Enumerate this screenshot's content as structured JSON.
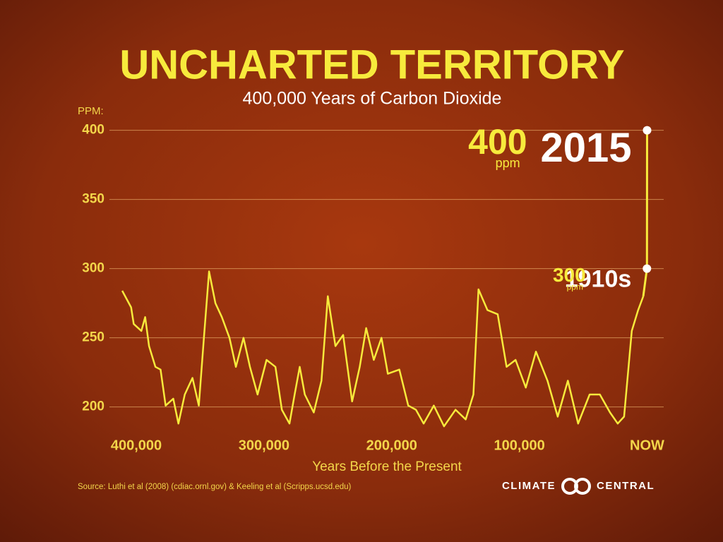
{
  "chart_data": {
    "type": "line",
    "title": "UNCHARTED TERRITORY",
    "subtitle": "400,000 Years of Carbon Dioxide",
    "y_label": "PPM:",
    "x_label": "Years Before the Present",
    "source": "Source:  Luthi et al (2008) (cdiac.ornl.gov) & Keeling et al (Scripps.ucsd.edu)",
    "logo": [
      "CLIMATE",
      "CENTRAL"
    ],
    "color": "#f7ea3c",
    "grid": true,
    "xlim": [
      421000,
      -13000
    ],
    "ylim": [
      183,
      410
    ],
    "xticks": [
      {
        "value": 400000,
        "label": "400,000"
      },
      {
        "value": 300000,
        "label": "300,000"
      },
      {
        "value": 200000,
        "label": "200,000"
      },
      {
        "value": 100000,
        "label": "100,000"
      },
      {
        "value": 0,
        "label": "NOW"
      }
    ],
    "yticks": [
      200,
      250,
      300,
      350,
      400
    ],
    "x": [
      411000,
      404000,
      402000,
      396000,
      393000,
      390000,
      385000,
      381000,
      377000,
      371000,
      367000,
      362000,
      356000,
      351000,
      347000,
      343000,
      338000,
      333000,
      327000,
      322000,
      316000,
      311000,
      305000,
      298000,
      291000,
      286000,
      280000,
      276000,
      272000,
      268000,
      261000,
      255000,
      250000,
      244000,
      238000,
      231000,
      225000,
      220000,
      214000,
      208000,
      203000,
      194000,
      187000,
      181000,
      175000,
      167000,
      159000,
      150000,
      142000,
      136000,
      132000,
      125000,
      117000,
      110000,
      103000,
      95000,
      87000,
      78000,
      70000,
      62000,
      54000,
      45000,
      37000,
      29000,
      23000,
      18000,
      12000,
      7000,
      3000
    ],
    "values": [
      284,
      272,
      260,
      255,
      265,
      244,
      229,
      227,
      201,
      206,
      188,
      209,
      221,
      201,
      250,
      298,
      275,
      265,
      250,
      229,
      250,
      229,
      209,
      234,
      229,
      198,
      188,
      209,
      229,
      209,
      196,
      219,
      280,
      244,
      252,
      204,
      229,
      257,
      234,
      250,
      224,
      227,
      201,
      198,
      188,
      201,
      186,
      198,
      191,
      209,
      285,
      270,
      267,
      229,
      234,
      214,
      240,
      219,
      193,
      219,
      188,
      209,
      209,
      196,
      188,
      193,
      255,
      270,
      280
    ],
    "highlights": [
      {
        "x": 0,
        "value": 400,
        "unit": "ppm",
        "label": "2015"
      },
      {
        "x": 105,
        "value": 300,
        "unit": "ppm",
        "label": "1910s"
      }
    ]
  }
}
